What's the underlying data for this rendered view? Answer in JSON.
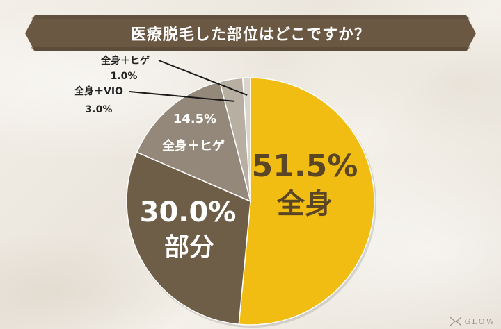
{
  "header": {
    "title": "医療脱毛した部位はどこですか？"
  },
  "chart_data": {
    "type": "pie",
    "title": "医療脱毛した部位はどこですか？",
    "slices": [
      {
        "label": "全身",
        "value": 51.5,
        "value_text": "51.5%",
        "color": "#f2bd12",
        "text_color": "#5a4525"
      },
      {
        "label": "部分",
        "value": 30.0,
        "value_text": "30.0%",
        "color": "#6e5d47",
        "text_color": "#ffffff"
      },
      {
        "label": "全身＋ヒゲ",
        "value": 14.5,
        "value_text": "14.5%",
        "color": "#94887a",
        "text_color": "#ffffff"
      },
      {
        "label": "全身＋VIO",
        "value": 3.0,
        "value_text": "3.0%",
        "color": "#b8afa3",
        "text_color": "#222222"
      },
      {
        "label": "全身＋ヒゲ",
        "value": 1.0,
        "value_text": "1.0%",
        "color": "#d9d4cc",
        "text_color": "#222222"
      }
    ],
    "start_angle_deg": 0,
    "direction": "clockwise",
    "legend": "none"
  },
  "watermark": {
    "text": "GLOW"
  },
  "colors": {
    "ribbon": "#6b5843",
    "ribbon_dark": "#4e4032",
    "leader": "#1a1a1a"
  }
}
